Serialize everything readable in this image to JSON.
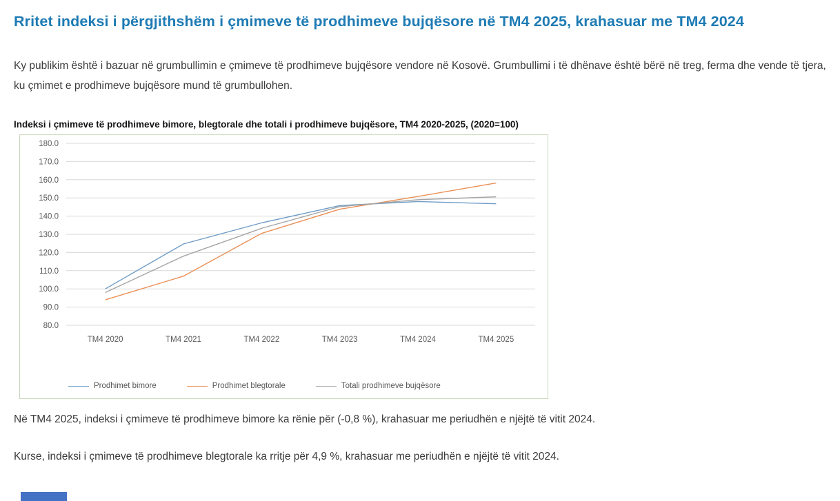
{
  "page": {
    "title": "Rritet indeksi i përgjithshëm i çmimeve të prodhimeve bujqësore në TM4 2025, krahasuar me TM4 2024",
    "title_color": "#1E7BB4",
    "intro": "Ky publikim është i bazuar në grumbullimin e çmimeve të prodhimeve bujqësore vendore në Kosovë. Grumbullimi i të dhënave është bërë në treg, ferma dhe vende të tjera, ku çmimet e prodhimeve bujqësore mund të grumbullohen.",
    "notes": [
      "Në TM4 2025, indeksi i çmimeve të prodhimeve bimore ka rënie për (-0,8 %), krahasuar me periudhën e njëjtë të vitit 2024.",
      "Kurse, indeksi i çmimeve të prodhimeve blegtorale ka rritje për 4,9 %, krahasuar me periudhën e njëjtë të vitit 2024."
    ]
  },
  "chart_data": {
    "type": "line",
    "title": "Indeksi i çmimeve të prodhimeve bimore, blegtorale dhe totali i prodhimeve bujqësore, TM4 2020-2025, (2020=100)",
    "categories": [
      "TM4 2020",
      "TM4 2021",
      "TM4 2022",
      "TM4 2023",
      "TM4 2024",
      "TM4 2025"
    ],
    "series": [
      {
        "name": "Prodhimet bimore",
        "color": "#6F9CC6",
        "values": [
          100.0,
          124.7,
          136.3,
          145.8,
          148.0,
          146.8
        ]
      },
      {
        "name": "Prodhimet blegtorale",
        "color": "#E98F55",
        "values": [
          94.0,
          107.0,
          130.5,
          143.8,
          150.8,
          158.2
        ]
      },
      {
        "name": "Totali prodhimeve bujqësore",
        "color": "#A5A5A5",
        "values": [
          98.0,
          118.0,
          133.3,
          145.2,
          149.0,
          150.6
        ]
      }
    ],
    "ylim": [
      80,
      180
    ],
    "ytick_step": 10,
    "grid": true,
    "legend_position": "bottom",
    "gridline_color": "#D9D9D9",
    "axis_text_color": "#595959",
    "border_color": "#C9D6BC"
  },
  "footer_bar": {
    "color": "#4472C4"
  }
}
